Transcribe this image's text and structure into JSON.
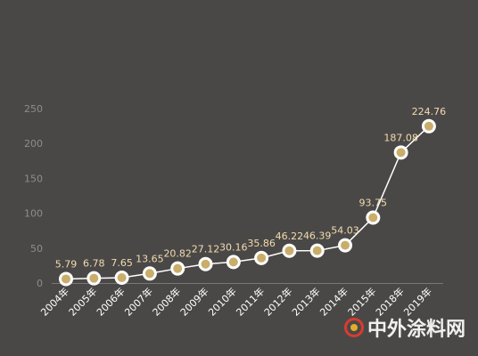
{
  "chart_data": {
    "type": "line",
    "categories": [
      "2004年",
      "2005年",
      "2006年",
      "2007年",
      "2008年",
      "2009年",
      "2010年",
      "2011年",
      "2012年",
      "2013年",
      "2014年",
      "2015年",
      "2018年",
      "2019年"
    ],
    "values": [
      5.79,
      6.78,
      7.65,
      13.65,
      20.82,
      27.12,
      30.16,
      35.86,
      46.22,
      46.39,
      54.03,
      93.75,
      187.08,
      224.76
    ],
    "value_labels": [
      "5.79",
      "6.78",
      "7.65",
      "13.65",
      "20.82",
      "27.12",
      "30.16",
      "35.86",
      "46.22",
      "46.39",
      "54.03",
      "93.75",
      "187.08",
      "224.76"
    ],
    "yticks": [
      0,
      50,
      100,
      150,
      200,
      250
    ],
    "ylim": [
      0,
      250
    ],
    "grid": false,
    "legend": "none"
  },
  "colors": {
    "background": "#4a4847",
    "line": "#ffffff",
    "marker_fill": "#c9ad6a",
    "marker_ring": "#ffffff",
    "value_label": "#f3dcae",
    "axis_tick_label": "#8f8d8b",
    "category_label": "#ffffff",
    "axis_line": "#7a7877"
  },
  "watermark": {
    "text": "中外涂料网",
    "icon": "brand-logo-icon"
  }
}
